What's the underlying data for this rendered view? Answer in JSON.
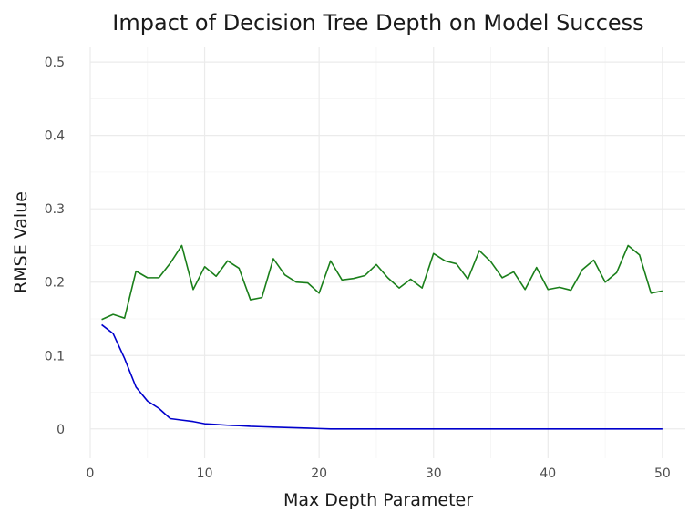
{
  "chart_data": {
    "type": "line",
    "title": "Impact of Decision Tree Depth on Model Success",
    "xlabel": "Max Depth Parameter",
    "ylabel": "RMSE Value",
    "xlim": [
      0,
      52
    ],
    "ylim": [
      -0.04,
      0.52
    ],
    "x_ticks": [
      0,
      10,
      20,
      30,
      40,
      50
    ],
    "y_ticks": [
      0,
      0.1,
      0.2,
      0.3,
      0.4,
      0.5
    ],
    "x_tick_labels": [
      "0",
      "10",
      "20",
      "30",
      "40",
      "50"
    ],
    "y_tick_labels": [
      "0",
      "0.1",
      "0.2",
      "0.3",
      "0.4",
      "0.5"
    ],
    "grid": true,
    "legend": "none",
    "x": [
      1,
      2,
      3,
      4,
      5,
      6,
      7,
      8,
      9,
      10,
      11,
      12,
      13,
      14,
      15,
      16,
      17,
      18,
      19,
      20,
      21,
      22,
      23,
      24,
      25,
      26,
      27,
      28,
      29,
      30,
      31,
      32,
      33,
      34,
      35,
      36,
      37,
      38,
      39,
      40,
      41,
      42,
      43,
      44,
      45,
      46,
      47,
      48,
      49,
      50
    ],
    "series": [
      {
        "color": "#0000cc",
        "values": [
          0.142,
          0.13,
          0.096,
          0.057,
          0.038,
          0.028,
          0.014,
          0.012,
          0.01,
          0.007,
          0.006,
          0.005,
          0.0045,
          0.0035,
          0.003,
          0.0025,
          0.002,
          0.0015,
          0.001,
          0.0005,
          0,
          0,
          0,
          0,
          0,
          0,
          0,
          0,
          0,
          0,
          0,
          0,
          0,
          0,
          0,
          0,
          0,
          0,
          0,
          0,
          0,
          0,
          0,
          0,
          0,
          0,
          0,
          0,
          0,
          0
        ]
      },
      {
        "color": "#1a7f1a",
        "values": [
          0.149,
          0.156,
          0.151,
          0.215,
          0.206,
          0.206,
          0.226,
          0.25,
          0.19,
          0.221,
          0.208,
          0.229,
          0.219,
          0.176,
          0.179,
          0.232,
          0.21,
          0.2,
          0.199,
          0.185,
          0.229,
          0.203,
          0.205,
          0.209,
          0.224,
          0.206,
          0.192,
          0.204,
          0.192,
          0.239,
          0.229,
          0.225,
          0.204,
          0.243,
          0.228,
          0.206,
          0.214,
          0.19,
          0.22,
          0.19,
          0.193,
          0.189,
          0.217,
          0.23,
          0.2,
          0.213,
          0.25,
          0.237,
          0.185,
          0.188
        ]
      }
    ]
  }
}
